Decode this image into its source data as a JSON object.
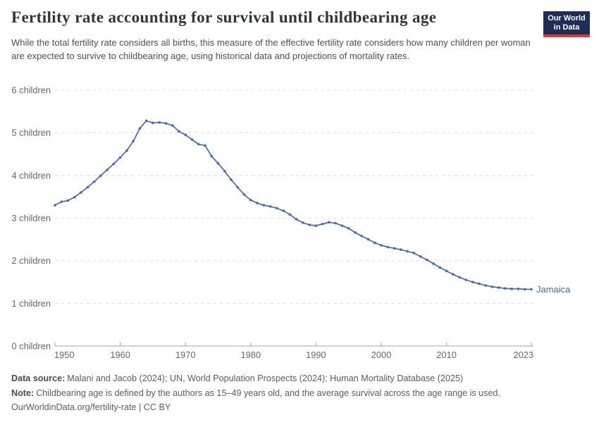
{
  "header": {
    "title": "Fertility rate accounting for survival until childbearing age",
    "subtitle": "While the total fertility rate considers all births, this measure of the effective fertility rate considers how many children per woman are expected to survive to childbearing age, using historical data and projections of mortality rates."
  },
  "logo": {
    "line1": "Our World",
    "line2": "in Data",
    "bg_color": "#1d2d54",
    "stripe_color": "#d93a3c"
  },
  "chart_data": {
    "type": "line",
    "title": "Fertility rate accounting for survival until childbearing age",
    "xlabel": "",
    "ylabel": "",
    "xlim": [
      1950,
      2023
    ],
    "ylim": [
      0,
      6
    ],
    "x_ticks": [
      1950,
      1960,
      1970,
      1980,
      1990,
      2000,
      2010,
      2023
    ],
    "y_ticks": [
      0,
      1,
      2,
      3,
      4,
      5,
      6
    ],
    "y_tick_suffix": " children",
    "grid": "horizontal-dashed",
    "legend_position": "end-of-line-label",
    "x": [
      1950,
      1951,
      1952,
      1953,
      1954,
      1955,
      1956,
      1957,
      1958,
      1959,
      1960,
      1961,
      1962,
      1963,
      1964,
      1965,
      1966,
      1967,
      1968,
      1969,
      1970,
      1971,
      1972,
      1973,
      1974,
      1975,
      1976,
      1977,
      1978,
      1979,
      1980,
      1981,
      1982,
      1983,
      1984,
      1985,
      1986,
      1987,
      1988,
      1989,
      1990,
      1991,
      1992,
      1993,
      1994,
      1995,
      1996,
      1997,
      1998,
      1999,
      2000,
      2001,
      2002,
      2003,
      2004,
      2005,
      2006,
      2007,
      2008,
      2009,
      2010,
      2011,
      2012,
      2013,
      2014,
      2015,
      2016,
      2017,
      2018,
      2019,
      2020,
      2021,
      2022,
      2023
    ],
    "series": [
      {
        "name": "Jamaica",
        "color": "#4c6a9f",
        "values": [
          3.3,
          3.38,
          3.41,
          3.49,
          3.6,
          3.72,
          3.85,
          3.99,
          4.13,
          4.27,
          4.42,
          4.58,
          4.8,
          5.1,
          5.28,
          5.23,
          5.24,
          5.22,
          5.17,
          5.03,
          4.95,
          4.84,
          4.73,
          4.7,
          4.45,
          4.28,
          4.1,
          3.9,
          3.72,
          3.55,
          3.42,
          3.35,
          3.3,
          3.27,
          3.23,
          3.17,
          3.08,
          2.97,
          2.89,
          2.84,
          2.82,
          2.86,
          2.9,
          2.88,
          2.82,
          2.76,
          2.66,
          2.58,
          2.5,
          2.42,
          2.36,
          2.32,
          2.29,
          2.26,
          2.22,
          2.18,
          2.1,
          2.02,
          1.93,
          1.84,
          1.76,
          1.68,
          1.61,
          1.55,
          1.5,
          1.46,
          1.42,
          1.39,
          1.37,
          1.35,
          1.34,
          1.34,
          1.33,
          1.33
        ]
      }
    ],
    "colors": {
      "grid": "#dcdcdc",
      "axis": "#a3a3a3",
      "tick_text": "#666666"
    }
  },
  "footer": {
    "data_source_label": "Data source:",
    "data_source_text": "Malani and Jacob (2024); UN, World Population Prospects (2024); Human Mortality Database (2025)",
    "note_label": "Note:",
    "note_text": "Childbearing age is defined by the authors as 15–49 years old, and the average survival across the age range is used.",
    "link": "OurWorldinData.org/fertility-rate | CC BY"
  }
}
